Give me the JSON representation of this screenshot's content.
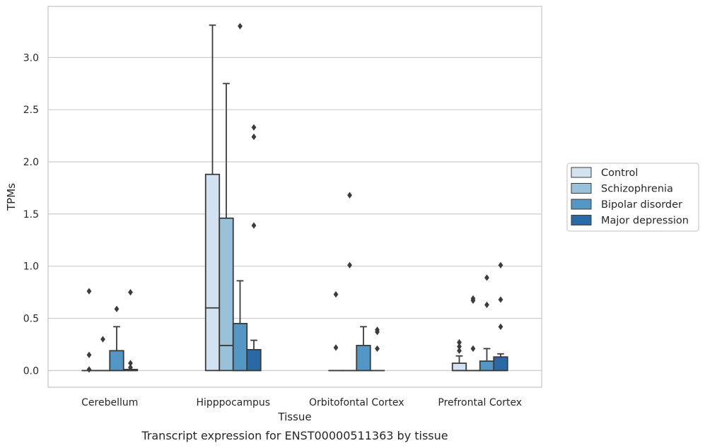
{
  "caption": "Transcript expression for ENST00000511363 by tissue",
  "chart_data": {
    "type": "box",
    "xlabel": "Tissue",
    "ylabel": "TPMs",
    "ylim": [
      -0.16,
      3.49
    ],
    "yticks": [
      0.0,
      0.5,
      1.0,
      1.5,
      2.0,
      2.5,
      3.0
    ],
    "ytick_labels": [
      "0.0",
      "0.5",
      "1.0",
      "1.5",
      "2.0",
      "2.5",
      "3.0"
    ],
    "grid": "horizontal",
    "legend_position": "right",
    "categories": [
      "Cerebellum",
      "Hipppocampus",
      "Orbitofontal Cortex",
      "Prefrontal Cortex"
    ],
    "series": [
      {
        "name": "Control",
        "color": "#d3e2f0",
        "boxes": [
          {
            "q1": 0.0,
            "median": 0.0,
            "q3": 0.0,
            "whislo": 0.0,
            "whishi": 0.0,
            "fliers": [
              0.76,
              0.15,
              0.01
            ]
          },
          {
            "q1": 0.0,
            "median": 0.6,
            "q3": 1.88,
            "whislo": 0.0,
            "whishi": 3.31,
            "fliers": []
          },
          {
            "q1": 0.0,
            "median": 0.0,
            "q3": 0.0,
            "whislo": 0.0,
            "whishi": 0.0,
            "fliers": [
              0.73,
              0.22
            ]
          },
          {
            "q1": 0.0,
            "median": 0.0,
            "q3": 0.07,
            "whislo": 0.0,
            "whishi": 0.14,
            "fliers": [
              0.27,
              0.23,
              0.19
            ]
          }
        ]
      },
      {
        "name": "Schizophrenia",
        "color": "#9ac1da",
        "boxes": [
          {
            "q1": 0.0,
            "median": 0.0,
            "q3": 0.0,
            "whislo": 0.0,
            "whishi": 0.0,
            "fliers": [
              0.3
            ]
          },
          {
            "q1": 0.0,
            "median": 0.24,
            "q3": 1.46,
            "whislo": 0.0,
            "whishi": 2.75,
            "fliers": []
          },
          {
            "q1": 0.0,
            "median": 0.0,
            "q3": 0.0,
            "whislo": 0.0,
            "whishi": 0.0,
            "fliers": [
              1.68,
              1.01
            ]
          },
          {
            "q1": 0.0,
            "median": 0.0,
            "q3": 0.0,
            "whislo": 0.0,
            "whishi": 0.0,
            "fliers": [
              0.69,
              0.67,
              0.21
            ]
          }
        ]
      },
      {
        "name": "Bipolar disorder",
        "color": "#5496c4",
        "boxes": [
          {
            "q1": 0.0,
            "median": 0.0,
            "q3": 0.19,
            "whislo": 0.0,
            "whishi": 0.42,
            "fliers": [
              0.59
            ]
          },
          {
            "q1": 0.0,
            "median": 0.0,
            "q3": 0.45,
            "whislo": 0.0,
            "whishi": 0.86,
            "fliers": [
              3.3
            ]
          },
          {
            "q1": 0.0,
            "median": 0.0,
            "q3": 0.24,
            "whislo": 0.0,
            "whishi": 0.42,
            "fliers": []
          },
          {
            "q1": 0.0,
            "median": 0.0,
            "q3": 0.09,
            "whislo": 0.0,
            "whishi": 0.21,
            "fliers": [
              0.89,
              0.63
            ]
          }
        ]
      },
      {
        "name": "Major depression",
        "color": "#2b69a6",
        "boxes": [
          {
            "q1": 0.0,
            "median": 0.0,
            "q3": 0.01,
            "whislo": 0.0,
            "whishi": 0.01,
            "fliers": [
              0.75,
              0.07,
              0.03
            ]
          },
          {
            "q1": 0.0,
            "median": 0.0,
            "q3": 0.2,
            "whislo": 0.0,
            "whishi": 0.29,
            "fliers": [
              2.33,
              2.24,
              1.39
            ]
          },
          {
            "q1": 0.0,
            "median": 0.0,
            "q3": 0.0,
            "whislo": 0.0,
            "whishi": 0.0,
            "fliers": [
              0.39,
              0.37,
              0.21
            ]
          },
          {
            "q1": 0.0,
            "median": 0.0,
            "q3": 0.13,
            "whislo": 0.0,
            "whishi": 0.16,
            "fliers": [
              1.01,
              0.68,
              0.42
            ]
          }
        ]
      }
    ]
  }
}
